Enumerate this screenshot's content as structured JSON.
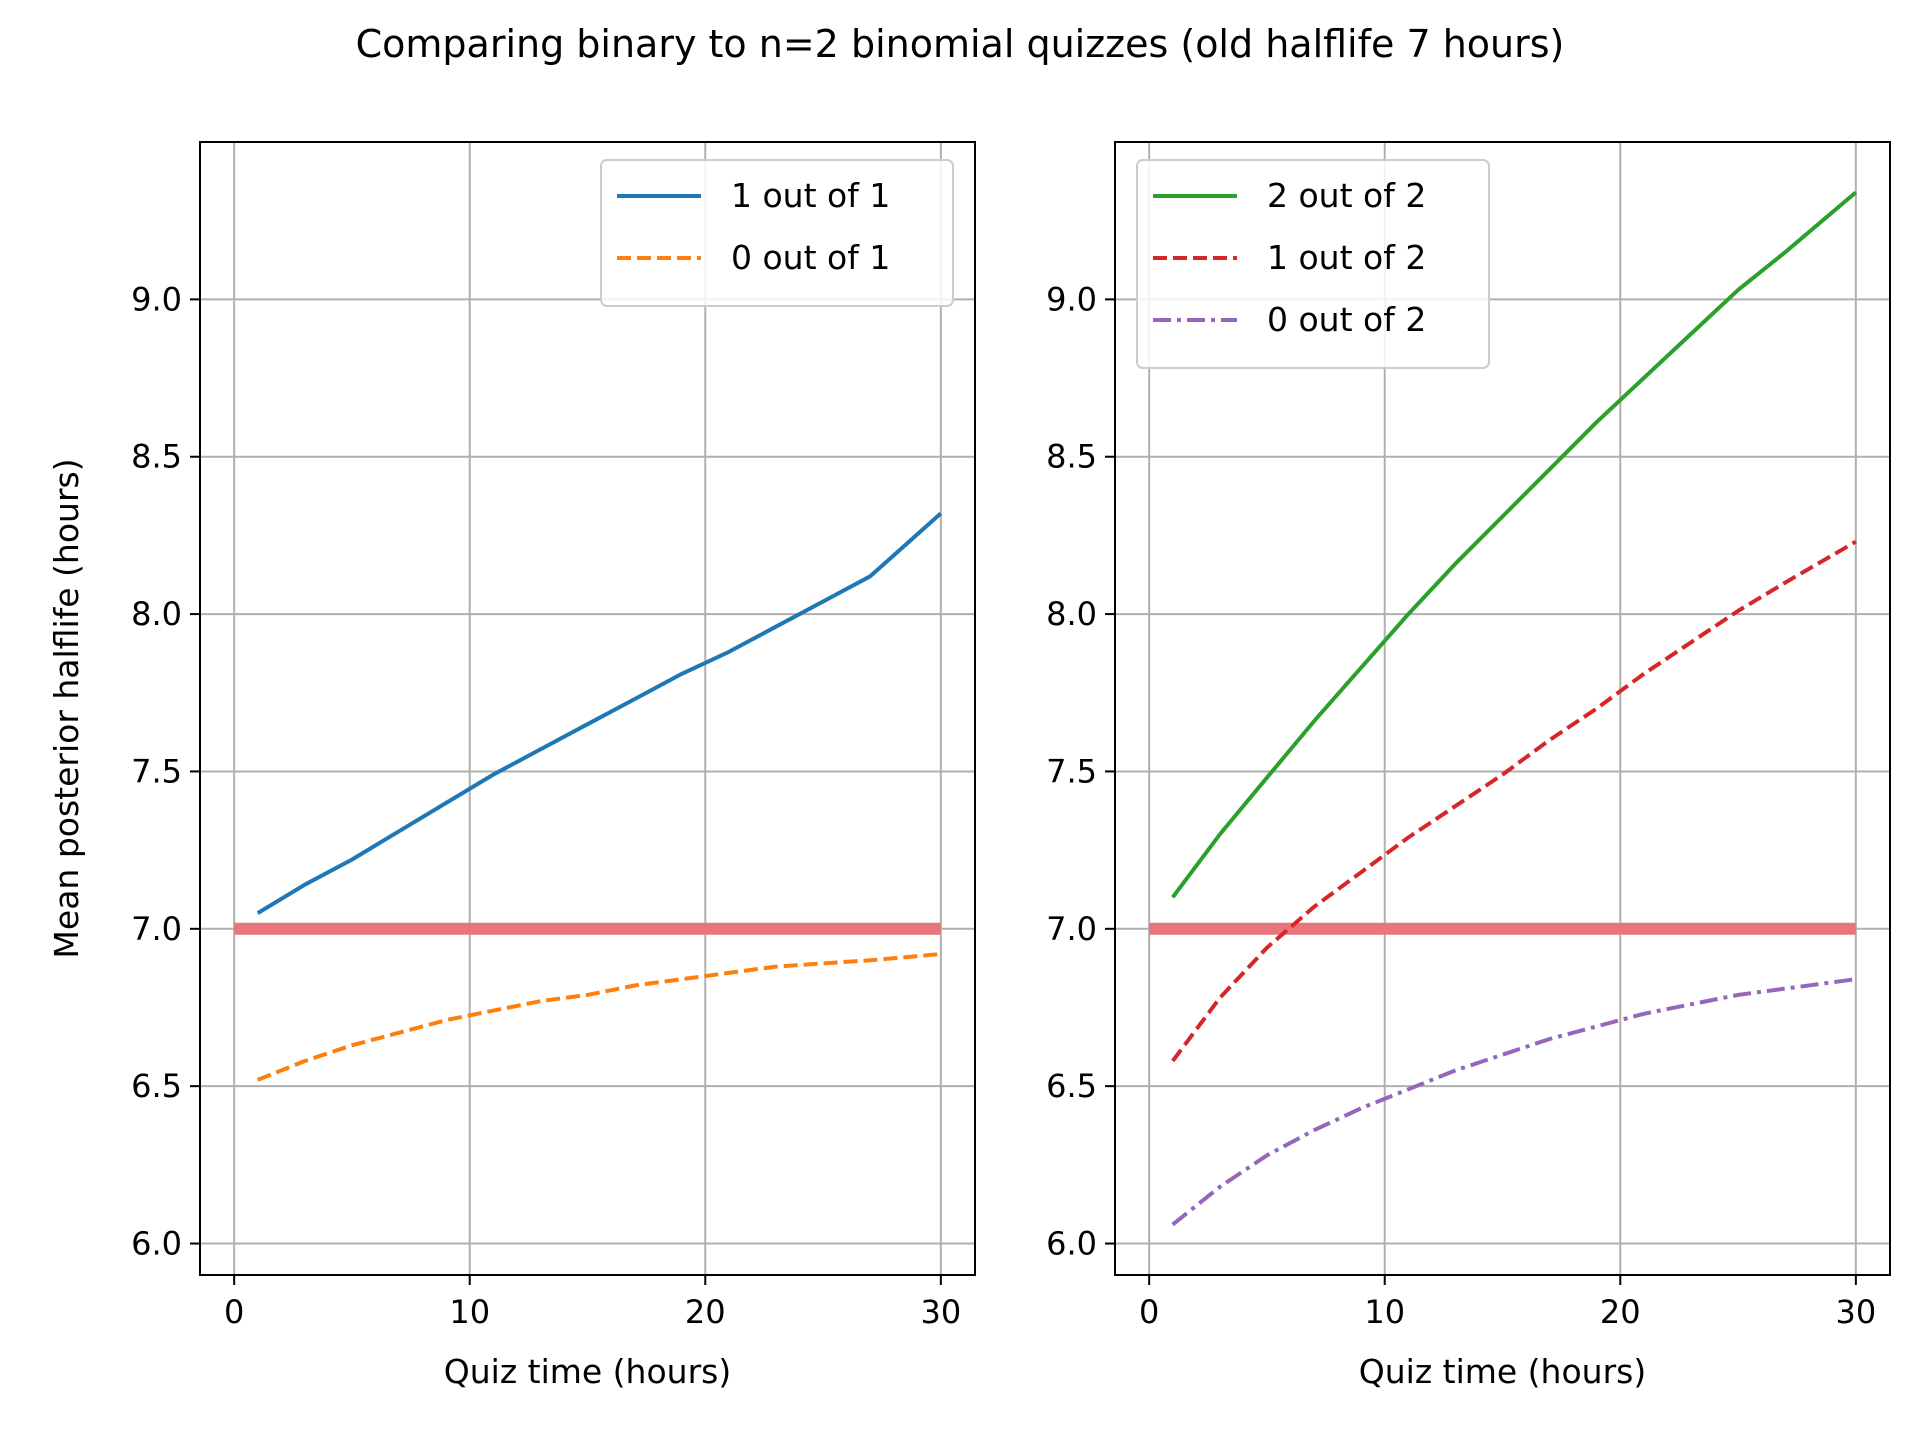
{
  "figure": {
    "title": "Comparing binary to n=2 binomial quizzes (old halflife 7 hours)"
  },
  "chart_data": [
    {
      "type": "line",
      "xlabel": "Quiz time (hours)",
      "ylabel": "Mean posterior halflife (hours)",
      "xlim": [
        -1.45,
        31.45
      ],
      "ylim": [
        5.9,
        9.5
      ],
      "xticks": [
        0,
        10,
        20,
        30
      ],
      "xtick_labels": [
        "0",
        "10",
        "20",
        "30"
      ],
      "yticks": [
        6.0,
        6.5,
        7.0,
        7.5,
        8.0,
        8.5,
        9.0
      ],
      "ytick_labels": [
        "6.0",
        "6.5",
        "7.0",
        "7.5",
        "8.0",
        "8.5",
        "9.0"
      ],
      "grid": true,
      "legend": "top-right",
      "reference_line": {
        "y": 7.0,
        "x": [
          0,
          30
        ],
        "color": "#e8747c"
      },
      "series": [
        {
          "name": "1 out of 1",
          "color": "#1f77b4",
          "style": "solid",
          "x": [
            1,
            3,
            5,
            7,
            9,
            11,
            13,
            15,
            17,
            19,
            21,
            23,
            25,
            27,
            30
          ],
          "y": [
            7.05,
            7.14,
            7.22,
            7.31,
            7.4,
            7.49,
            7.57,
            7.65,
            7.73,
            7.81,
            7.88,
            7.96,
            8.04,
            8.12,
            8.32
          ]
        },
        {
          "name": "0 out of 1",
          "color": "#ff7f0e",
          "style": "dashed",
          "x": [
            1,
            3,
            5,
            7,
            9,
            11,
            13,
            15,
            17,
            19,
            21,
            23,
            25,
            27,
            30
          ],
          "y": [
            6.52,
            6.58,
            6.63,
            6.67,
            6.71,
            6.74,
            6.77,
            6.79,
            6.82,
            6.84,
            6.86,
            6.88,
            6.89,
            6.9,
            6.92
          ]
        }
      ]
    },
    {
      "type": "line",
      "xlabel": "Quiz time (hours)",
      "ylabel": "",
      "xlim": [
        -1.45,
        31.45
      ],
      "ylim": [
        5.9,
        9.5
      ],
      "xticks": [
        0,
        10,
        20,
        30
      ],
      "xtick_labels": [
        "0",
        "10",
        "20",
        "30"
      ],
      "yticks": [
        6.0,
        6.5,
        7.0,
        7.5,
        8.0,
        8.5,
        9.0
      ],
      "ytick_labels": [
        "6.0",
        "6.5",
        "7.0",
        "7.5",
        "8.0",
        "8.5",
        "9.0"
      ],
      "grid": true,
      "legend": "top-left",
      "reference_line": {
        "y": 7.0,
        "x": [
          0,
          30
        ],
        "color": "#e8747c"
      },
      "series": [
        {
          "name": "2 out of 2",
          "color": "#2ca02c",
          "style": "solid",
          "x": [
            1,
            3,
            5,
            7,
            9,
            11,
            13,
            15,
            17,
            19,
            21,
            23,
            25,
            27,
            30
          ],
          "y": [
            7.1,
            7.3,
            7.48,
            7.66,
            7.83,
            8.0,
            8.16,
            8.31,
            8.46,
            8.61,
            8.75,
            8.89,
            9.03,
            9.15,
            9.34
          ]
        },
        {
          "name": "1 out of 2",
          "color": "#d62728",
          "style": "dashed",
          "x": [
            1,
            3,
            5,
            7,
            9,
            11,
            13,
            15,
            17,
            19,
            21,
            23,
            25,
            27,
            30
          ],
          "y": [
            6.58,
            6.78,
            6.94,
            7.07,
            7.18,
            7.29,
            7.39,
            7.49,
            7.6,
            7.7,
            7.81,
            7.91,
            8.01,
            8.1,
            8.23
          ]
        },
        {
          "name": "0 out of 2",
          "color": "#9467bd",
          "style": "dashdot",
          "x": [
            1,
            3,
            5,
            7,
            9,
            11,
            13,
            15,
            17,
            19,
            21,
            23,
            25,
            27,
            30
          ],
          "y": [
            6.06,
            6.18,
            6.28,
            6.36,
            6.43,
            6.49,
            6.55,
            6.6,
            6.65,
            6.69,
            6.73,
            6.76,
            6.79,
            6.81,
            6.84
          ]
        }
      ]
    }
  ]
}
